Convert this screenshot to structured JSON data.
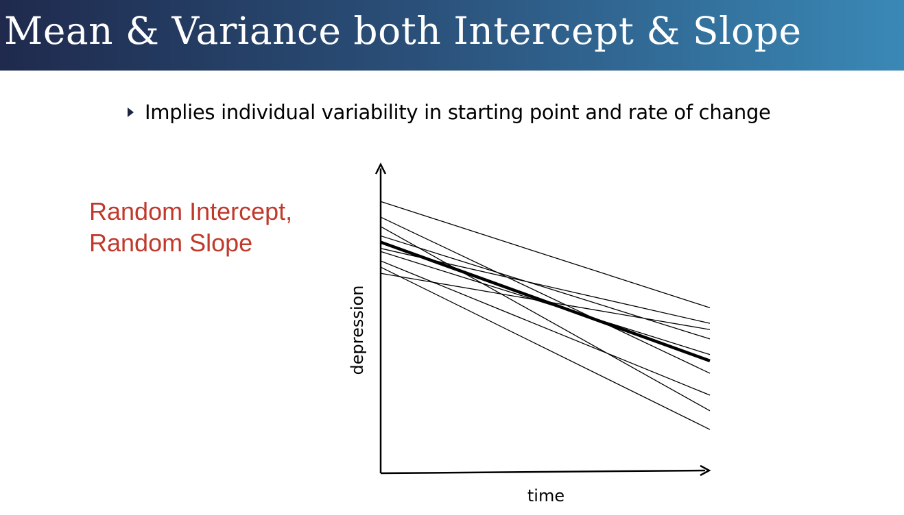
{
  "slide": {
    "title": "Mean & Variance both Intercept & Slope",
    "bullet": "Implies individual variability in starting point and rate of change",
    "side_label_line1": "Random Intercept,",
    "side_label_line2": "Random Slope"
  },
  "colors": {
    "title_gradient_start": "#1f2a4d",
    "title_gradient_end": "#3a88b6",
    "side_label": "#c0392b",
    "lines": "#000000"
  },
  "chart_data": {
    "type": "line",
    "xlabel": "time",
    "ylabel": "depression",
    "x": [
      0,
      1
    ],
    "xlim": [
      0,
      1
    ],
    "ylim": [
      0,
      1
    ],
    "grid": false,
    "axis_ticks": false,
    "series": [
      {
        "values": [
          0.87,
          0.53
        ],
        "mean": false
      },
      {
        "values": [
          0.82,
          0.32
        ],
        "mean": false
      },
      {
        "values": [
          0.79,
          0.2
        ],
        "mean": false
      },
      {
        "values": [
          0.76,
          0.43
        ],
        "mean": false
      },
      {
        "values": [
          0.72,
          0.48
        ],
        "mean": false
      },
      {
        "values": [
          0.71,
          0.38
        ],
        "mean": false
      },
      {
        "values": [
          0.68,
          0.25
        ],
        "mean": false
      },
      {
        "values": [
          0.66,
          0.14
        ],
        "mean": false
      },
      {
        "values": [
          0.64,
          0.46
        ],
        "mean": false
      },
      {
        "values": [
          0.74,
          0.36
        ],
        "mean": true
      }
    ]
  }
}
